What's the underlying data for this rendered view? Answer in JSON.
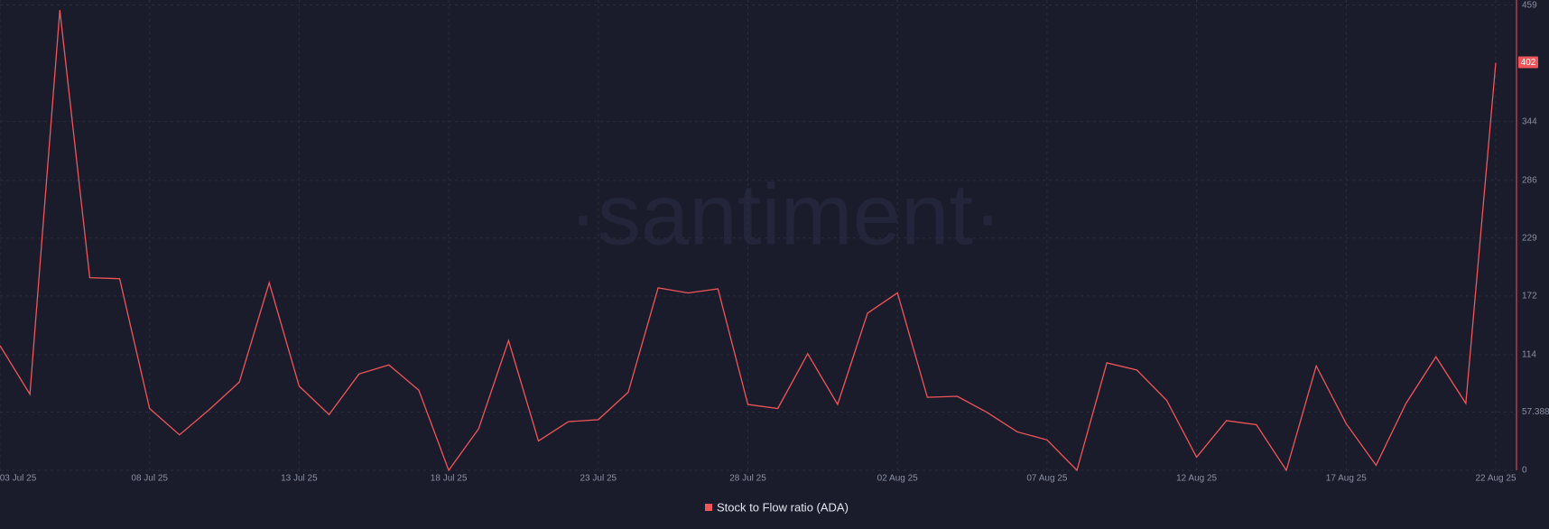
{
  "watermark": "·santiment·",
  "chart_data": {
    "type": "line",
    "categories": [
      "03 Jul 25",
      null,
      null,
      null,
      null,
      "08 Jul 25",
      null,
      null,
      null,
      null,
      "13 Jul 25",
      null,
      null,
      null,
      null,
      "18 Jul 25",
      null,
      null,
      null,
      null,
      "23 Jul 25",
      null,
      null,
      null,
      null,
      "28 Jul 25",
      null,
      null,
      null,
      null,
      "02 Aug 25",
      null,
      null,
      null,
      null,
      "07 Aug 25",
      null,
      null,
      null,
      null,
      "12 Aug 25",
      null,
      null,
      null,
      null,
      "17 Aug 25",
      null,
      null,
      null,
      null,
      "22 Aug 25"
    ],
    "series": [
      {
        "name": "Stock to Flow ratio (ADA)",
        "color": "#f0555a",
        "values": [
          123,
          75,
          454,
          190,
          189,
          61,
          35,
          60,
          87,
          185,
          83,
          55,
          95,
          104,
          79,
          0,
          41,
          128,
          29,
          48,
          50,
          77,
          180,
          175,
          179,
          65,
          61,
          115,
          65,
          155,
          175,
          72,
          73,
          57,
          38,
          30,
          0,
          106,
          99,
          69,
          13,
          49,
          45,
          0,
          103,
          46,
          5,
          66,
          112,
          66,
          402
        ]
      }
    ],
    "ylim": [
      0,
      459
    ],
    "yticks": [
      0,
      57.388,
      114,
      172,
      229,
      286,
      344,
      459
    ],
    "grid": true
  }
}
